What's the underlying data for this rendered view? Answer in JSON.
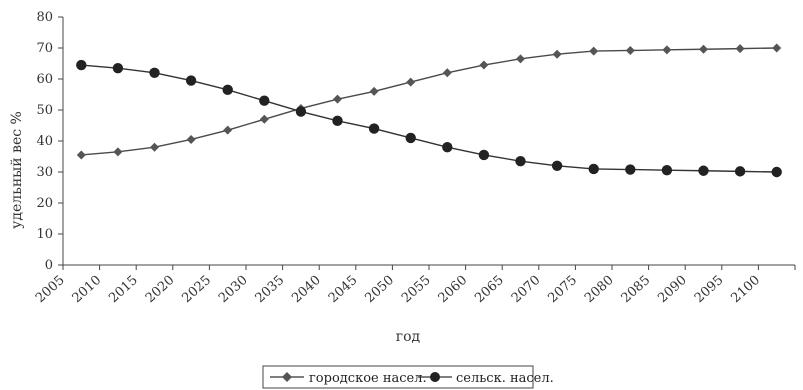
{
  "chart_data": {
    "type": "line",
    "xlabel": "год",
    "ylabel": "удельный вес %",
    "ylim": [
      0,
      80
    ],
    "yticks": [
      0,
      10,
      20,
      30,
      40,
      50,
      60,
      70,
      80
    ],
    "categories": [
      "2005",
      "2010",
      "2015",
      "2020",
      "2025",
      "2030",
      "2035",
      "2040",
      "2045",
      "2050",
      "2055",
      "2060",
      "2065",
      "2070",
      "2075",
      "2080",
      "2085",
      "2090",
      "2095",
      "2100"
    ],
    "grid": false,
    "legend_position": "bottom",
    "series": [
      {
        "name": "городское насел.",
        "marker": "diamond",
        "values": [
          35.5,
          36.5,
          38,
          40.5,
          43.5,
          47,
          50.5,
          53.5,
          56,
          59,
          62,
          64.5,
          66.5,
          68,
          69,
          69.2,
          69.4,
          69.6,
          69.8,
          70
        ]
      },
      {
        "name": "сельск. насел.",
        "marker": "circle",
        "values": [
          64.5,
          63.5,
          62,
          59.5,
          56.5,
          53,
          49.5,
          46.5,
          44,
          41,
          38,
          35.5,
          33.5,
          32,
          31,
          30.8,
          30.6,
          30.4,
          30.2,
          30
        ]
      }
    ]
  }
}
